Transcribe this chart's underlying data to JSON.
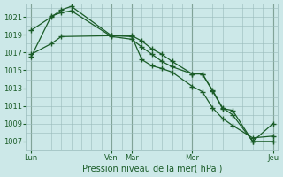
{
  "bg_color": "#cce8e8",
  "grid_color": "#99bbbb",
  "line_color": "#1a5c28",
  "xlabel": "Pression niveau de la mer( hPa )",
  "ylim": [
    1006.0,
    1022.5
  ],
  "yticks": [
    1007,
    1009,
    1011,
    1013,
    1015,
    1017,
    1019,
    1021
  ],
  "xtick_labels": [
    "Lun",
    "Ven",
    "Mar",
    "Mer",
    "Jeu"
  ],
  "xtick_positions": [
    0,
    8,
    10,
    16,
    24
  ],
  "vline_positions": [
    0,
    8,
    10,
    16,
    24
  ],
  "line1_x": [
    0,
    2,
    3,
    4,
    8,
    10,
    11,
    12,
    13,
    14,
    16,
    17,
    18,
    19,
    20,
    22,
    24
  ],
  "line1_y": [
    1019.5,
    1021.0,
    1021.8,
    1022.2,
    1018.9,
    1018.9,
    1018.3,
    1017.4,
    1016.8,
    1016.0,
    1014.6,
    1014.6,
    1012.7,
    1010.7,
    1010.5,
    1007.0,
    1007.0
  ],
  "line2_x": [
    0,
    2,
    3,
    4,
    8,
    10,
    11,
    12,
    13,
    14,
    16,
    17,
    18,
    19,
    20,
    22,
    24
  ],
  "line2_y": [
    1016.5,
    1021.1,
    1021.5,
    1021.7,
    1018.8,
    1018.5,
    1017.6,
    1016.8,
    1016.0,
    1015.4,
    1014.6,
    1014.6,
    1012.8,
    1010.8,
    1010.0,
    1007.0,
    1009.0
  ],
  "line3_x": [
    0,
    2,
    3,
    8,
    10,
    11,
    12,
    13,
    14,
    16,
    17,
    18,
    19,
    20,
    22,
    24
  ],
  "line3_y": [
    1016.8,
    1018.0,
    1018.8,
    1018.9,
    1018.8,
    1016.2,
    1015.5,
    1015.2,
    1014.8,
    1013.2,
    1012.6,
    1010.8,
    1009.6,
    1008.8,
    1007.4,
    1007.6
  ],
  "marker": "+",
  "markersize": 4,
  "linewidth": 0.9
}
